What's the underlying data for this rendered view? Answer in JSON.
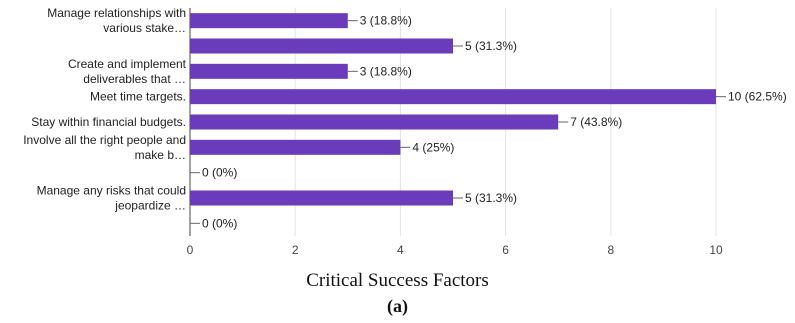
{
  "figure": {
    "caption": "Critical Success Factors",
    "sublabel": "(a)"
  },
  "chart_data": {
    "type": "bar",
    "orientation": "horizontal",
    "bar_color": "#6a3cbc",
    "categories": [
      [
        "Manage relationships with",
        "various stake…"
      ],
      [],
      [
        "Create and implement",
        "deliverables that …"
      ],
      [
        "Meet time targets."
      ],
      [
        "Stay within financial budgets."
      ],
      [
        "Involve all the right people and",
        "make b…"
      ],
      [],
      [
        "Manage any risks that could",
        "jeopardize …"
      ],
      []
    ],
    "values": [
      3,
      5,
      3,
      10,
      7,
      4,
      0,
      5,
      0
    ],
    "value_labels": [
      "3 (18.8%)",
      "5 (31.3%)",
      "3 (18.8%)",
      "10 (62.5%)",
      "7 (43.8%)",
      "4 (25%)",
      "0 (0%)",
      "5 (31.3%)",
      "0 (0%)"
    ],
    "xlim": [
      0,
      10
    ],
    "xticks": [
      0,
      2,
      4,
      6,
      8,
      10
    ],
    "grid": true
  }
}
